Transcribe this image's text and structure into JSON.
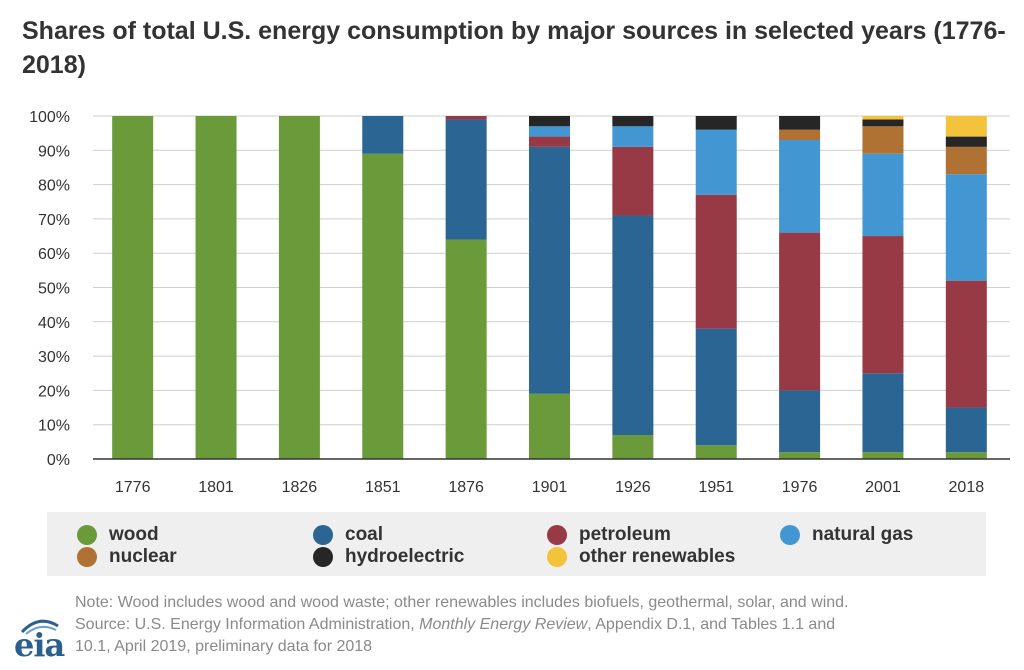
{
  "title": "Shares of total U.S. energy consumption by major sources in selected years (1776-2018)",
  "chart_data": {
    "type": "stacked-bar",
    "title": "Shares of total U.S. energy consumption by major sources in selected years (1776-2018)",
    "categories": [
      "1776",
      "1801",
      "1826",
      "1851",
      "1876",
      "1901",
      "1926",
      "1951",
      "1976",
      "2001",
      "2018"
    ],
    "ylim": [
      0,
      100
    ],
    "yticks": [
      0,
      10,
      20,
      30,
      40,
      50,
      60,
      70,
      80,
      90,
      100
    ],
    "ytick_labels": [
      "0%",
      "10%",
      "20%",
      "30%",
      "40%",
      "50%",
      "60%",
      "70%",
      "80%",
      "90%",
      "100%"
    ],
    "grid": true,
    "legend_position": "bottom",
    "series": [
      {
        "name": "wood",
        "color": "#6a9a3a",
        "values": [
          100,
          100,
          100,
          89,
          64,
          19,
          7,
          4,
          2,
          2,
          2
        ]
      },
      {
        "name": "coal",
        "color": "#2b6593",
        "values": [
          0,
          0,
          0,
          11,
          35,
          72,
          64,
          34,
          18,
          23,
          13
        ]
      },
      {
        "name": "petroleum",
        "color": "#983a45",
        "values": [
          0,
          0,
          0,
          0,
          1,
          3,
          20,
          39,
          46,
          40,
          37
        ]
      },
      {
        "name": "natural gas",
        "color": "#4297d3",
        "values": [
          0,
          0,
          0,
          0,
          0,
          3,
          6,
          19,
          27,
          24,
          31
        ]
      },
      {
        "name": "nuclear",
        "color": "#b07232",
        "values": [
          0,
          0,
          0,
          0,
          0,
          0,
          0,
          0,
          3,
          8,
          8
        ]
      },
      {
        "name": "hydroelectric",
        "color": "#262626",
        "values": [
          0,
          0,
          0,
          0,
          0,
          3,
          3,
          4,
          4,
          2,
          3
        ]
      },
      {
        "name": "other renewables",
        "color": "#f4c33c",
        "values": [
          0,
          0,
          0,
          0,
          0,
          0,
          0,
          0,
          0,
          1,
          6
        ]
      }
    ]
  },
  "note": {
    "line1": "Note: Wood includes wood and wood waste; other renewables includes biofuels, geothermal, solar, and wind.",
    "line2_prefix": "Source: U.S. Energy Information Administration, ",
    "line2_italic": "Monthly Energy Review",
    "line2_suffix": ", Appendix D.1, and Tables 1.1 and",
    "line3": "10.1, April 2019, preliminary data for 2018"
  },
  "logo": {
    "text": "eia"
  }
}
